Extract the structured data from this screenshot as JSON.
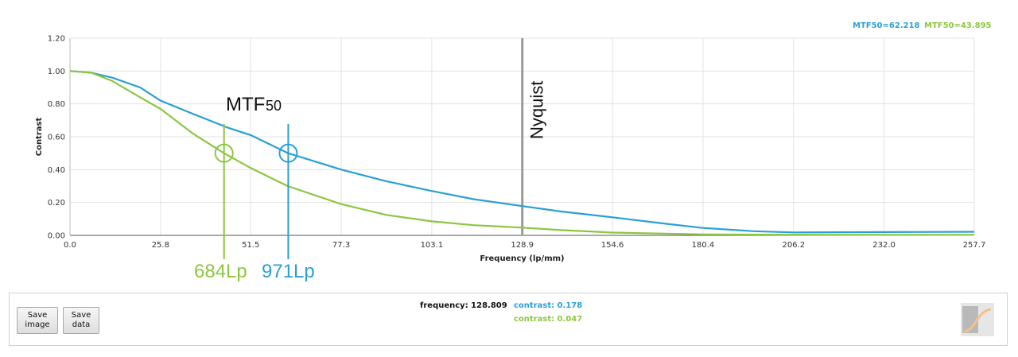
{
  "chart_data": {
    "type": "line",
    "title": "",
    "xlabel": "Frequency (lp/mm)",
    "ylabel": "Contrast",
    "xlim": [
      0,
      257.7
    ],
    "ylim": [
      0,
      1.2
    ],
    "x_ticks": [
      "0.0",
      "25.8",
      "51.5",
      "77.3",
      "103.1",
      "128.9",
      "154.6",
      "180.4",
      "206.2",
      "232.0",
      "257.7"
    ],
    "y_ticks": [
      "0.00",
      "0.20",
      "0.40",
      "0.60",
      "0.80",
      "1.00",
      "1.20"
    ],
    "grid": true,
    "legend_position": "top-right",
    "series": [
      {
        "name": "MTF50=62.218",
        "color": "#2a9fd6",
        "points": [
          [
            0,
            1.0
          ],
          [
            6,
            0.99
          ],
          [
            12,
            0.96
          ],
          [
            20,
            0.9
          ],
          [
            25.8,
            0.82
          ],
          [
            35,
            0.74
          ],
          [
            45,
            0.655
          ],
          [
            51.5,
            0.61
          ],
          [
            62.2,
            0.5
          ],
          [
            77.3,
            0.4
          ],
          [
            90,
            0.33
          ],
          [
            103.1,
            0.27
          ],
          [
            115,
            0.22
          ],
          [
            128.9,
            0.178
          ],
          [
            140,
            0.145
          ],
          [
            154.6,
            0.11
          ],
          [
            170,
            0.07
          ],
          [
            180.4,
            0.045
          ],
          [
            195,
            0.025
          ],
          [
            206.2,
            0.018
          ],
          [
            232,
            0.02
          ],
          [
            257.7,
            0.022
          ]
        ]
      },
      {
        "name": "MTF50=43.895",
        "color": "#8dc63f",
        "points": [
          [
            0,
            1.0
          ],
          [
            6,
            0.99
          ],
          [
            12,
            0.94
          ],
          [
            20,
            0.84
          ],
          [
            25.8,
            0.77
          ],
          [
            35,
            0.62
          ],
          [
            43.9,
            0.5
          ],
          [
            51.5,
            0.41
          ],
          [
            62,
            0.3
          ],
          [
            77.3,
            0.19
          ],
          [
            90,
            0.125
          ],
          [
            103.1,
            0.085
          ],
          [
            115,
            0.062
          ],
          [
            128.9,
            0.047
          ],
          [
            140,
            0.032
          ],
          [
            154.6,
            0.017
          ],
          [
            180.4,
            0.006
          ],
          [
            206.2,
            0.004
          ],
          [
            232,
            0.003
          ],
          [
            257.7,
            0.003
          ]
        ]
      }
    ],
    "annotations": {
      "mtf_label": "MTF",
      "mtf_subscript": "50",
      "nyquist_label": "Nyquist",
      "nyquist_x": 128.9,
      "marker_y": 0.5,
      "blue_marker_x": 62.2,
      "green_marker_x": 43.9,
      "blue_lp_label": "971Lp",
      "green_lp_label": "684Lp"
    }
  },
  "panel": {
    "save_image_label": "Save image",
    "save_data_label": "Save data",
    "frequency_label": "frequency: 128.809",
    "blue_contrast_label": "contrast: 0.178",
    "green_contrast_label": "contrast: 0.047"
  }
}
